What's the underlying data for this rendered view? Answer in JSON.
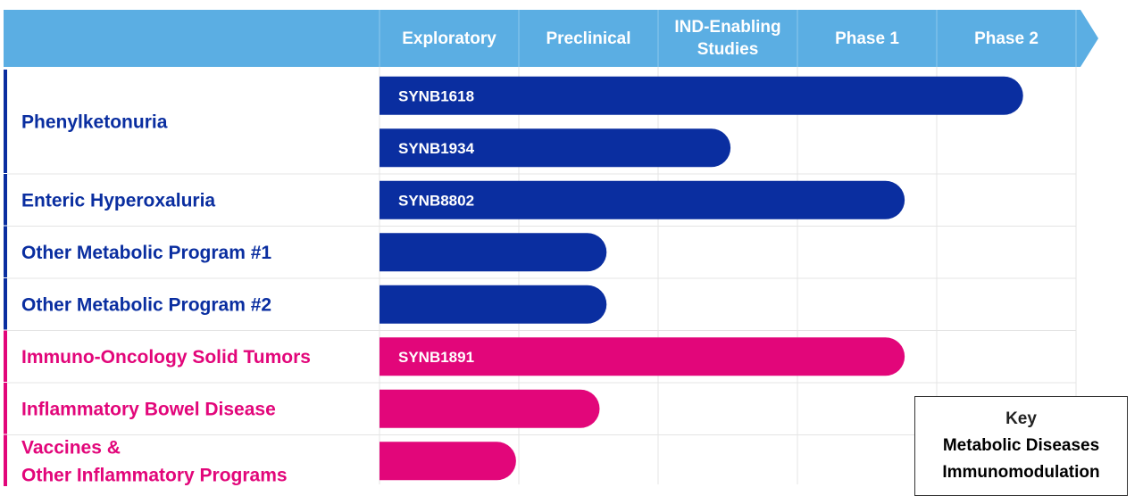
{
  "chart_data": {
    "type": "bar",
    "subtype": "pipeline-gantt",
    "stages": [
      "Exploratory",
      "Preclinical",
      "IND-Enabling\nStudies",
      "Phase 1",
      "Phase 2"
    ],
    "groups": [
      {
        "label": "Phenylketonuria",
        "category": "metabolic",
        "programs": [
          {
            "name": "SYNB1618",
            "progress": 4.62
          },
          {
            "name": "SYNB1934",
            "progress": 2.52
          }
        ]
      },
      {
        "label": "Enteric Hyperoxaluria",
        "category": "metabolic",
        "programs": [
          {
            "name": "SYNB8802",
            "progress": 3.77
          }
        ]
      },
      {
        "label": "Other Metabolic Program #1",
        "category": "metabolic",
        "programs": [
          {
            "name": "",
            "progress": 1.63
          }
        ]
      },
      {
        "label": "Other Metabolic Program #2",
        "category": "metabolic",
        "programs": [
          {
            "name": "",
            "progress": 1.63
          }
        ]
      },
      {
        "label": "Immuno-Oncology Solid Tumors",
        "category": "immuno",
        "programs": [
          {
            "name": "SYNB1891",
            "progress": 3.77
          }
        ]
      },
      {
        "label": "Inflammatory Bowel Disease",
        "category": "immuno",
        "programs": [
          {
            "name": "",
            "progress": 1.58
          }
        ]
      },
      {
        "label": "Vaccines &\nOther Inflammatory Programs",
        "category": "immuno",
        "programs": [
          {
            "name": "",
            "progress": 0.98
          }
        ]
      }
    ],
    "key": {
      "title": "Key",
      "items": [
        {
          "label": "Metabolic Diseases",
          "category": "metabolic"
        },
        {
          "label": "Immunomodulation",
          "category": "immuno"
        }
      ]
    },
    "colors": {
      "metabolic": "#0a2ea0",
      "immuno": "#e2067a",
      "header": "#5baee3",
      "gridline": "#e4e4e4"
    }
  }
}
